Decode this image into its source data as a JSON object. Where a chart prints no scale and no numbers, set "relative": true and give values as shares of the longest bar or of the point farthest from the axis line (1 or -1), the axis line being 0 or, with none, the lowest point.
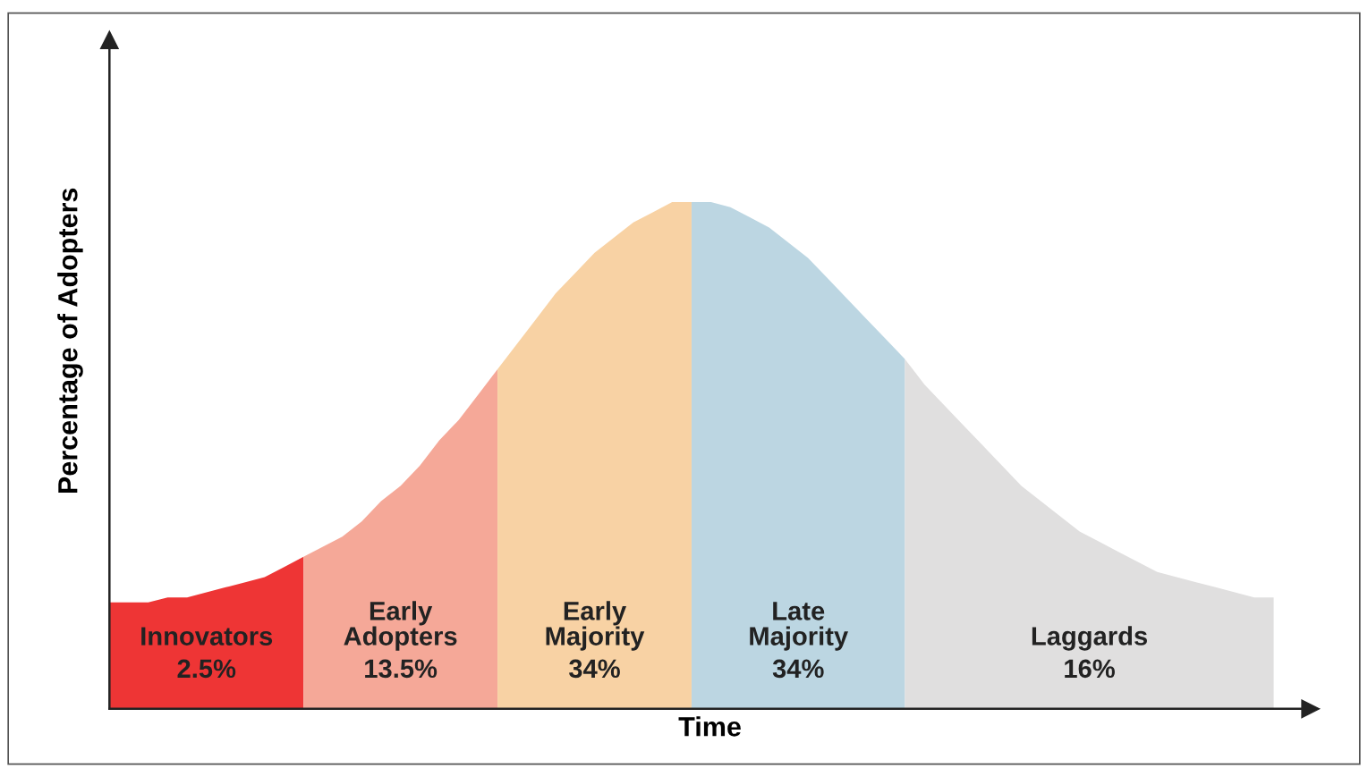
{
  "chart_data": {
    "type": "area",
    "relative": true,
    "xlabel": "Time",
    "ylabel": "Percentage of Adopters",
    "categories": [
      null,
      null,
      null,
      null,
      null,
      null,
      null,
      null,
      null,
      null,
      null,
      null,
      null,
      null,
      null,
      null,
      null,
      null,
      null,
      null,
      null,
      null,
      null,
      null,
      null,
      null,
      null,
      null,
      null,
      null,
      null,
      null,
      null,
      null,
      null,
      null,
      null,
      null,
      null,
      null,
      null,
      null,
      null,
      null,
      null,
      null,
      null,
      null,
      null,
      null,
      null,
      null,
      null,
      null,
      null,
      null,
      null,
      null,
      null,
      null,
      null
    ],
    "series": [
      {
        "name": "Innovators",
        "color": "#ee3535",
        "values": [
          0.21,
          0.21,
          0.21,
          0.22,
          0.22,
          0.23,
          0.24,
          0.25,
          0.26,
          0.28,
          0.3,
          null,
          null,
          null,
          null,
          null,
          null,
          null,
          null,
          null,
          null,
          null,
          null,
          null,
          null,
          null,
          null,
          null,
          null,
          null,
          null,
          null,
          null,
          null,
          null,
          null,
          null,
          null,
          null,
          null,
          null,
          null,
          null,
          null,
          null,
          null,
          null,
          null,
          null,
          null,
          null,
          null,
          null,
          null,
          null,
          null,
          null,
          null,
          null,
          null,
          null
        ]
      },
      {
        "name": "Early\nAdopters",
        "color": "#f5a898",
        "values": [
          null,
          null,
          null,
          null,
          null,
          null,
          null,
          null,
          null,
          null,
          0.3,
          0.32,
          0.34,
          0.37,
          0.41,
          0.44,
          0.48,
          0.53,
          0.57,
          0.62,
          0.67,
          null,
          null,
          null,
          null,
          null,
          null,
          null,
          null,
          null,
          null,
          null,
          null,
          null,
          null,
          null,
          null,
          null,
          null,
          null,
          null,
          null,
          null,
          null,
          null,
          null,
          null,
          null,
          null,
          null,
          null,
          null,
          null,
          null,
          null,
          null,
          null,
          null,
          null,
          null,
          null
        ]
      },
      {
        "name": "Early\nMajority",
        "color": "#f8d2a4",
        "values": [
          null,
          null,
          null,
          null,
          null,
          null,
          null,
          null,
          null,
          null,
          null,
          null,
          null,
          null,
          null,
          null,
          null,
          null,
          null,
          null,
          0.67,
          0.72,
          0.77,
          0.82,
          0.86,
          0.9,
          0.93,
          0.96,
          0.98,
          1.0,
          1.0,
          null,
          null,
          null,
          null,
          null,
          null,
          null,
          null,
          null,
          null,
          null,
          null,
          null,
          null,
          null,
          null,
          null,
          null,
          null,
          null,
          null,
          null,
          null,
          null,
          null,
          null,
          null,
          null,
          null,
          null
        ]
      },
      {
        "name": "Late\nMajority",
        "color": "#bcd6e2",
        "values": [
          null,
          null,
          null,
          null,
          null,
          null,
          null,
          null,
          null,
          null,
          null,
          null,
          null,
          null,
          null,
          null,
          null,
          null,
          null,
          null,
          null,
          null,
          null,
          null,
          null,
          null,
          null,
          null,
          null,
          null,
          1.0,
          1.0,
          0.99,
          0.97,
          0.95,
          0.92,
          0.89,
          0.85,
          0.81,
          0.77,
          0.73,
          0.69,
          null,
          null,
          null,
          null,
          null,
          null,
          null,
          null,
          null,
          null,
          null,
          null,
          null,
          null,
          null,
          null,
          null,
          null,
          null
        ]
      },
      {
        "name": "Laggards",
        "color": "#e0dfdf",
        "values": [
          null,
          null,
          null,
          null,
          null,
          null,
          null,
          null,
          null,
          null,
          null,
          null,
          null,
          null,
          null,
          null,
          null,
          null,
          null,
          null,
          null,
          null,
          null,
          null,
          null,
          null,
          null,
          null,
          null,
          null,
          null,
          null,
          null,
          null,
          null,
          null,
          null,
          null,
          null,
          null,
          null,
          0.69,
          0.64,
          0.6,
          0.56,
          0.52,
          0.48,
          0.44,
          0.41,
          0.38,
          0.35,
          0.33,
          0.31,
          0.29,
          0.27,
          0.26,
          0.25,
          0.24,
          0.23,
          0.22,
          0.22
        ]
      }
    ],
    "annotations": [
      "2.5%",
      "13.5%",
      "34%",
      "34%",
      "16%"
    ]
  }
}
